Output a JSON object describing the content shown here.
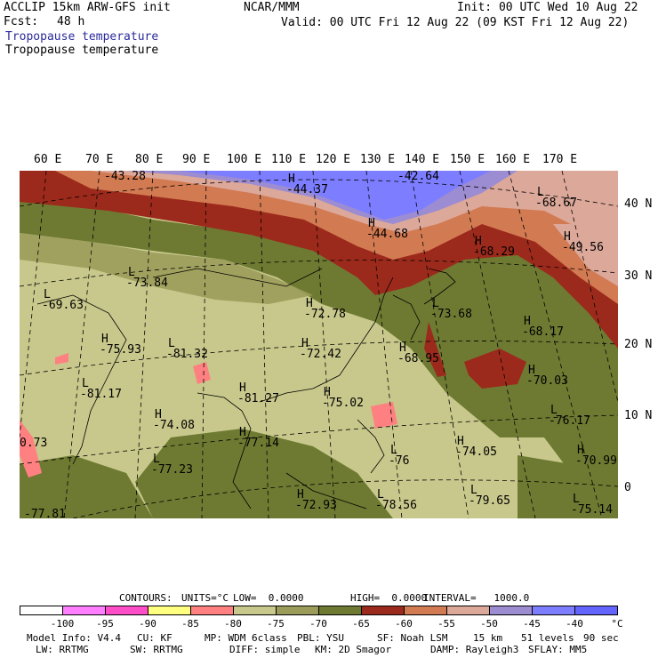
{
  "header": {
    "model": "ACCLIP 15km ARW-GFS init",
    "fcst_label": "Fcst:",
    "fcst_value": "48 h",
    "center": "NCAR/MMM",
    "init": "Init: 00 UTC Wed 10 Aug 22",
    "valid": "Valid: 00 UTC Fri 12 Aug 22 (09 KST Fri 12 Aug 22)",
    "field_title_1": "Tropopause temperature",
    "field_title_2": "Tropopause temperature"
  },
  "axes": {
    "lon_labels": [
      "60 E",
      "70 E",
      "80 E",
      "90 E",
      "100 E",
      "110 E",
      "120 E",
      "130 E",
      "140 E",
      "150 E",
      "160 E",
      "170 E"
    ],
    "lat_labels": [
      "40 N",
      "30 N",
      "20 N",
      "10 N",
      "0"
    ]
  },
  "highs_lows": [
    {
      "symbol": "H",
      "value": "-43.28"
    },
    {
      "symbol": "H",
      "value": "-44.37"
    },
    {
      "symbol": "H",
      "value": "-42.64"
    },
    {
      "symbol": "H",
      "value": "-44.68"
    },
    {
      "symbol": "L",
      "value": "-68.67"
    },
    {
      "symbol": "H",
      "value": "-49.56"
    },
    {
      "symbol": "H",
      "value": "-68.29"
    },
    {
      "symbol": "L",
      "value": "-73.84"
    },
    {
      "symbol": "L",
      "value": "-69.63"
    },
    {
      "symbol": "H",
      "value": "-72.78"
    },
    {
      "symbol": "L",
      "value": "-73.68"
    },
    {
      "symbol": "H",
      "value": "-68.17"
    },
    {
      "symbol": "H",
      "value": "-75.93"
    },
    {
      "symbol": "L",
      "value": "-81.32"
    },
    {
      "symbol": "H",
      "value": "-72.42"
    },
    {
      "symbol": "H",
      "value": "-68.95"
    },
    {
      "symbol": "H",
      "value": "-70.03"
    },
    {
      "symbol": "L",
      "value": "-81.17"
    },
    {
      "symbol": "H",
      "value": "-81.27"
    },
    {
      "symbol": "H",
      "value": "-75.02"
    },
    {
      "symbol": "L",
      "value": "-76.17"
    },
    {
      "symbol": "H",
      "value": "-74.08"
    },
    {
      "symbol": "H",
      "value": "-77.14"
    },
    {
      "symbol": "L",
      "value": "-76"
    },
    {
      "symbol": "H",
      "value": "-74.05"
    },
    {
      "symbol": "H",
      "value": "-70.99"
    },
    {
      "symbol": "",
      "value": "0.73"
    },
    {
      "symbol": "L",
      "value": "-77.23"
    },
    {
      "symbol": "H",
      "value": "-72.93"
    },
    {
      "symbol": "L",
      "value": "-78.56"
    },
    {
      "symbol": "L",
      "value": "-79.65"
    },
    {
      "symbol": "L",
      "value": "-75.14"
    },
    {
      "symbol": "",
      "value": "-77.81"
    }
  ],
  "contour_info": {
    "contours": "CONTOURS:",
    "units": "UNITS=°C",
    "low": "LOW=  0.0000",
    "high": "HIGH=  0.0000",
    "interval": "INTERVAL=   1000.0"
  },
  "colorbar": {
    "colors": [
      "#ffffff",
      "#ff7dff",
      "#ff4cc8",
      "#ffff80",
      "#ff8080",
      "#c8c88c",
      "#9c9c5a",
      "#6e7a32",
      "#9c2a1c",
      "#d27a52",
      "#dca89a",
      "#9c8cd2",
      "#7d7dff",
      "#6464ff"
    ],
    "labels": [
      "-100",
      "-95",
      "-90",
      "-85",
      "-80",
      "-75",
      "-70",
      "-65",
      "-60",
      "-55",
      "-50",
      "-45",
      "-40",
      "°C"
    ]
  },
  "footer": {
    "line1_model": "Model Info: V4.4",
    "line1_cu": "CU: KF",
    "line1_mp": "MP: WDM 6class",
    "line1_pbl": "PBL: YSU",
    "line1_sf": "SF: Noah LSM",
    "line1_res": "15 km",
    "line1_levels": "51 levels",
    "line1_dt": "90 sec",
    "line2_lw": "LW: RRTMG",
    "line2_sw": "SW: RRTMG",
    "line2_diff": "DIFF: simple",
    "line2_km": "KM: 2D Smagor",
    "line2_damp": "DAMP: Rayleigh3",
    "line2_sflay": "SFLAY: MM5"
  }
}
